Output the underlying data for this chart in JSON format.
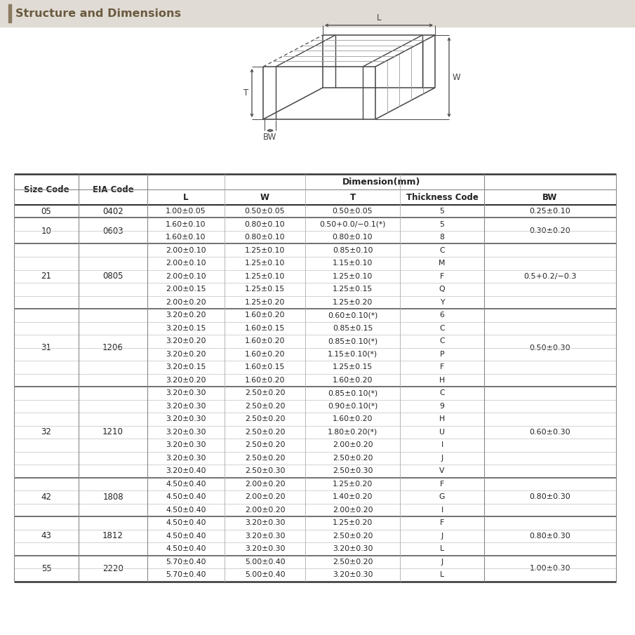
{
  "title": "Structure and Dimensions",
  "title_bar_color": "#e0dbd4",
  "title_accent_color": "#8a7a60",
  "title_text_color": "#6a5a40",
  "header_row": [
    "Size Code",
    "EIA Code",
    "L",
    "W",
    "T",
    "Thickness Code",
    "BW"
  ],
  "dim_header": "Dimension(mm)",
  "rows": [
    {
      "size": "05",
      "eia": "0402",
      "L": "1.00±0.05",
      "W": "0.50±0.05",
      "T": "0.50±0.05",
      "TC": "5",
      "BW": "0.25±0.10",
      "bw_span": 1
    },
    {
      "size": "10",
      "eia": "0603",
      "L": "1.60±0.10",
      "W": "0.80±0.10",
      "T": "0.50+0.0/−0.1(*)",
      "TC": "5",
      "BW": "0.30±0.20",
      "bw_span": 2
    },
    {
      "size": "",
      "eia": "",
      "L": "1.60±0.10",
      "W": "0.80±0.10",
      "T": "0.80±0.10",
      "TC": "8",
      "BW": "",
      "bw_span": 0
    },
    {
      "size": "21",
      "eia": "0805",
      "L": "2.00±0.10",
      "W": "1.25±0.10",
      "T": "0.85±0.10",
      "TC": "C",
      "BW": "0.5+0.2/−0.3",
      "bw_span": 5
    },
    {
      "size": "",
      "eia": "",
      "L": "2.00±0.10",
      "W": "1.25±0.10",
      "T": "1.15±0.10",
      "TC": "M",
      "BW": "",
      "bw_span": 0
    },
    {
      "size": "",
      "eia": "",
      "L": "2.00±0.10",
      "W": "1.25±0.10",
      "T": "1.25±0.10",
      "TC": "F",
      "BW": "",
      "bw_span": 0
    },
    {
      "size": "",
      "eia": "",
      "L": "2.00±0.15",
      "W": "1.25±0.15",
      "T": "1.25±0.15",
      "TC": "Q",
      "BW": "",
      "bw_span": 0
    },
    {
      "size": "",
      "eia": "",
      "L": "2.00±0.20",
      "W": "1.25±0.20",
      "T": "1.25±0.20",
      "TC": "Y",
      "BW": "",
      "bw_span": 0
    },
    {
      "size": "31",
      "eia": "1206",
      "L": "3.20±0.20",
      "W": "1.60±0.20",
      "T": "0.60±0.10(*)",
      "TC": "6",
      "BW": "0.50±0.30",
      "bw_span": 6
    },
    {
      "size": "",
      "eia": "",
      "L": "3.20±0.15",
      "W": "1.60±0.15",
      "T": "0.85±0.15",
      "TC": "C",
      "BW": "",
      "bw_span": 0
    },
    {
      "size": "",
      "eia": "",
      "L": "3.20±0.20",
      "W": "1.60±0.20",
      "T": "0.85±0.10(*)",
      "TC": "C",
      "BW": "",
      "bw_span": 0
    },
    {
      "size": "",
      "eia": "",
      "L": "3.20±0.20",
      "W": "1.60±0.20",
      "T": "1.15±0.10(*)",
      "TC": "P",
      "BW": "",
      "bw_span": 0
    },
    {
      "size": "",
      "eia": "",
      "L": "3.20±0.15",
      "W": "1.60±0.15",
      "T": "1.25±0.15",
      "TC": "F",
      "BW": "",
      "bw_span": 0
    },
    {
      "size": "",
      "eia": "",
      "L": "3.20±0.20",
      "W": "1.60±0.20",
      "T": "1.60±0.20",
      "TC": "H",
      "BW": "",
      "bw_span": 0
    },
    {
      "size": "32",
      "eia": "1210",
      "L": "3.20±0.30",
      "W": "2.50±0.20",
      "T": "0.85±0.10(*)",
      "TC": "C",
      "BW": "0.60±0.30",
      "bw_span": 7
    },
    {
      "size": "",
      "eia": "",
      "L": "3.20±0.30",
      "W": "2.50±0.20",
      "T": "0.90±0.10(*)",
      "TC": "9",
      "BW": "",
      "bw_span": 0
    },
    {
      "size": "",
      "eia": "",
      "L": "3.20±0.30",
      "W": "2.50±0.20",
      "T": "1.60±0.20",
      "TC": "H",
      "BW": "",
      "bw_span": 0
    },
    {
      "size": "",
      "eia": "",
      "L": "3.20±0.30",
      "W": "2.50±0.20",
      "T": "1.80±0.20(*)",
      "TC": "U",
      "BW": "",
      "bw_span": 0
    },
    {
      "size": "",
      "eia": "",
      "L": "3.20±0.30",
      "W": "2.50±0.20",
      "T": "2.00±0.20",
      "TC": "I",
      "BW": "",
      "bw_span": 0
    },
    {
      "size": "",
      "eia": "",
      "L": "3.20±0.30",
      "W": "2.50±0.20",
      "T": "2.50±0.20",
      "TC": "J",
      "BW": "",
      "bw_span": 0
    },
    {
      "size": "",
      "eia": "",
      "L": "3.20±0.40",
      "W": "2.50±0.30",
      "T": "2.50±0.30",
      "TC": "V",
      "BW": "",
      "bw_span": 0
    },
    {
      "size": "42",
      "eia": "1808",
      "L": "4.50±0.40",
      "W": "2.00±0.20",
      "T": "1.25±0.20",
      "TC": "F",
      "BW": "0.80±0.30",
      "bw_span": 3
    },
    {
      "size": "",
      "eia": "",
      "L": "4.50±0.40",
      "W": "2.00±0.20",
      "T": "1.40±0.20",
      "TC": "G",
      "BW": "",
      "bw_span": 0
    },
    {
      "size": "",
      "eia": "",
      "L": "4.50±0.40",
      "W": "2.00±0.20",
      "T": "2.00±0.20",
      "TC": "I",
      "BW": "",
      "bw_span": 0
    },
    {
      "size": "43",
      "eia": "1812",
      "L": "4.50±0.40",
      "W": "3.20±0.30",
      "T": "1.25±0.20",
      "TC": "F",
      "BW": "0.80±0.30",
      "bw_span": 3
    },
    {
      "size": "",
      "eia": "",
      "L": "4.50±0.40",
      "W": "3.20±0.30",
      "T": "2.50±0.20",
      "TC": "J",
      "BW": "",
      "bw_span": 0
    },
    {
      "size": "",
      "eia": "",
      "L": "4.50±0.40",
      "W": "3.20±0.30",
      "T": "3.20±0.30",
      "TC": "L",
      "BW": "",
      "bw_span": 0
    },
    {
      "size": "55",
      "eia": "2220",
      "L": "5.70±0.40",
      "W": "5.00±0.40",
      "T": "2.50±0.20",
      "TC": "J",
      "BW": "1.00±0.30",
      "bw_span": 2
    },
    {
      "size": "",
      "eia": "",
      "L": "5.70±0.40",
      "W": "5.00±0.40",
      "T": "3.20±0.30",
      "TC": "L",
      "BW": "",
      "bw_span": 0
    }
  ],
  "group_starts": [
    0,
    1,
    3,
    8,
    14,
    21,
    24,
    27
  ],
  "bg_color": "#ffffff",
  "line_color": "#aaaaaa",
  "thick_line_color": "#555555",
  "text_color": "#333333"
}
